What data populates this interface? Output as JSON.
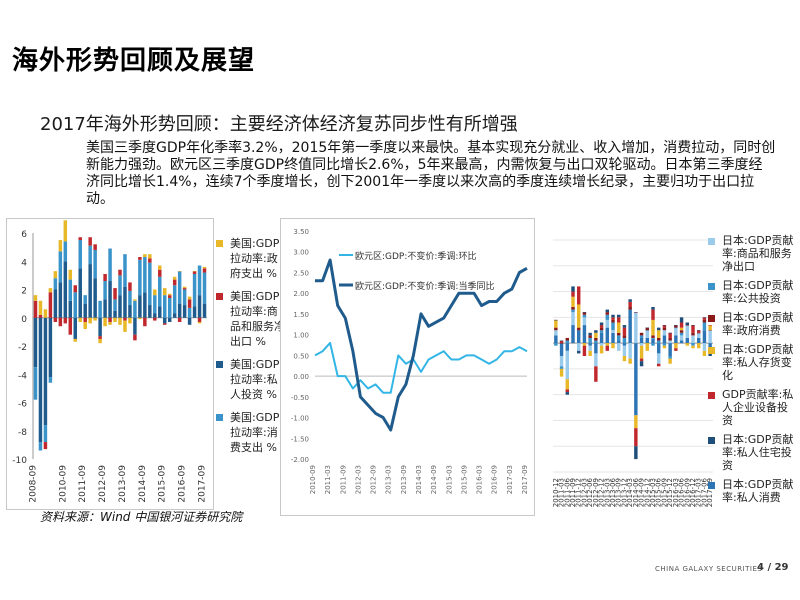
{
  "header": {
    "title": "海外形势回顾及展望"
  },
  "subtitle": "2017年海外形势回顾：主要经济体经济复苏同步性有所增强",
  "paragraph": "美国三季度GDP年化季率3.2%，2015年第一季度以来最快。基本实现充分就业、收入增加，消费拉动，同时创新能力强劲。欧元区三季度GDP终值同比增长2.6%，5年来最高，内需恢复与出口双轮驱动。日本第三季度经济同比增长1.4%，连续7个季度增长，创下2001年一季度以来次高的季度连续增长纪录，主要归功于出口拉动。",
  "source": "资料来源：Wind 中国银河证券研究院",
  "footer": {
    "company": "CHINA GALAXY SECURITIES",
    "page": "4 / 29"
  },
  "colors": {
    "gov": "#E8B829",
    "net_export": "#C0282D",
    "priv_invest": "#1F5B8C",
    "consume": "#3A93C9",
    "dark_line": "#1F5B8C",
    "light_line": "#33B5E5"
  },
  "chart_data": [
    {
      "type": "bar",
      "stacked": true,
      "ylim": [
        -10,
        6
      ],
      "yticks": [
        "6",
        "4",
        "2",
        "0",
        "-2",
        "-4",
        "-6",
        "-8",
        "-10"
      ],
      "ytick_values": [
        6,
        4,
        2,
        0,
        -2,
        -4,
        -6,
        -8,
        -10
      ],
      "xticks": [
        "2008-09",
        "2010-09",
        "2011-09",
        "2012-09",
        "2013-09",
        "2014-09",
        "2015-09",
        "2016-09",
        "2017-09"
      ],
      "xticks_index": [
        0,
        6,
        10,
        14,
        18,
        22,
        26,
        30,
        34
      ],
      "legend": [
        "美国:GDP拉动率:政府支出 %",
        "美国:GDP拉动率:商品和服务净出口 %",
        "美国:GDP拉动率:私人投资 %",
        "美国:GDP拉动率:消费支出 %"
      ],
      "series": [
        {
          "name": "美国:GDP拉动率:政府支出 %",
          "values": [
            0.4,
            1.0,
            0.6,
            0.3,
            0.5,
            0.8,
            1.5,
            0.7,
            -0.2,
            -0.3,
            -0.5,
            -0.4,
            -0.2,
            -0.3,
            -0.6,
            -0.2,
            -0.3,
            -0.5,
            -0.8,
            -0.4,
            0.1,
            -0.1,
            0.2,
            0.3,
            0.4,
            0.3,
            0.5,
            0.1,
            0.2,
            0.0,
            0.1,
            0.2,
            0.0,
            -0.1,
            0.1
          ]
        },
        {
          "name": "美国:GDP拉动率:商品和服务净出口 %",
          "values": [
            1.2,
            0.2,
            -0.5,
            1.8,
            -0.3,
            -0.6,
            -0.4,
            -1.2,
            0.5,
            0.2,
            -0.3,
            0.6,
            0.4,
            -0.2,
            0.5,
            -0.3,
            0.8,
            0.4,
            -0.2,
            0.6,
            -0.4,
            0.2,
            -0.6,
            0.3,
            -0.2,
            0.5,
            -0.1,
            0.2,
            0.4,
            -0.3,
            0.1,
            0.6,
            0.2,
            -0.3,
            0.3
          ]
        },
        {
          "name": "美国:GDP拉动率:私人投资 %",
          "values": [
            -3.5,
            -8.8,
            -7.6,
            -4.2,
            2.0,
            2.5,
            4.0,
            1.2,
            -1.5,
            3.5,
            1.0,
            3.8,
            2.8,
            -1.3,
            1.3,
            2.6,
            0.5,
            1.6,
            2.2,
            0.9,
            -1.2,
            1.6,
            1.8,
            0.9,
            0.3,
            0.8,
            -0.4,
            -0.3,
            0.3,
            1.0,
            0.9,
            -0.5,
            0.8,
            1.6,
            1.0
          ]
        },
        {
          "name": "美国:GDP拉动率:消费支出 %",
          "values": [
            -2.3,
            -0.6,
            -1.2,
            -0.4,
            0.8,
            2.2,
            1.4,
            1.5,
            1.8,
            2.0,
            0.6,
            1.3,
            2.0,
            1.2,
            1.3,
            2.3,
            0.8,
            1.4,
            2.3,
            1.0,
            1.2,
            2.5,
            2.5,
            3.0,
            1.3,
            2.1,
            1.6,
            1.4,
            2.0,
            2.3,
            1.1,
            0.7,
            2.3,
            2.1,
            2.2
          ]
        }
      ]
    },
    {
      "type": "line",
      "ylim": [
        -2.0,
        3.5
      ],
      "yticks": [
        "3.50",
        "3.00",
        "2.50",
        "2.00",
        "1.50",
        "1.00",
        "0.50",
        "0.00",
        "-0.50",
        "-1.00",
        "-1.50",
        "-2.00"
      ],
      "ytick_values": [
        3.5,
        3.0,
        2.5,
        2.0,
        1.5,
        1.0,
        0.5,
        0.0,
        -0.5,
        -1.0,
        -1.5,
        -2.0
      ],
      "xticks": [
        "2010-09",
        "2011-03",
        "2011-09",
        "2012-03",
        "2012-09",
        "2013-03",
        "2013-09",
        "2014-03",
        "2014-09",
        "2015-03",
        "2015-09",
        "2016-03",
        "2016-09",
        "2017-03",
        "2017-09"
      ],
      "x": [
        "2010-09",
        "2010-12",
        "2011-03",
        "2011-06",
        "2011-09",
        "2011-12",
        "2012-03",
        "2012-06",
        "2012-09",
        "2012-12",
        "2013-03",
        "2013-06",
        "2013-09",
        "2013-12",
        "2014-03",
        "2014-06",
        "2014-09",
        "2014-12",
        "2015-03",
        "2015-06",
        "2015-09",
        "2015-12",
        "2016-03",
        "2016-06",
        "2016-09",
        "2016-12",
        "2017-03",
        "2017-06",
        "2017-09"
      ],
      "legend": [
        "欧元区:GDP:不变价:季调:环比",
        "欧元区:GDP:不变价:季调:当季同比"
      ],
      "series": [
        {
          "name": "欧元区:GDP:不变价:季调:环比",
          "values": [
            0.5,
            0.6,
            0.8,
            0.0,
            0.0,
            -0.3,
            -0.1,
            -0.3,
            -0.2,
            -0.4,
            -0.4,
            0.5,
            0.3,
            0.4,
            0.1,
            0.4,
            0.5,
            0.6,
            0.4,
            0.4,
            0.5,
            0.5,
            0.4,
            0.3,
            0.4,
            0.6,
            0.6,
            0.7,
            0.6
          ]
        },
        {
          "name": "欧元区:GDP:不变价:季调:当季同比",
          "values": [
            2.3,
            2.3,
            2.8,
            1.7,
            1.4,
            0.6,
            -0.5,
            -0.7,
            -0.9,
            -1.0,
            -1.3,
            -0.5,
            -0.2,
            0.5,
            1.5,
            1.2,
            1.3,
            1.4,
            1.7,
            2.0,
            2.0,
            2.0,
            1.7,
            1.8,
            1.8,
            2.0,
            2.1,
            2.5,
            2.6
          ]
        }
      ]
    },
    {
      "type": "bar",
      "stacked": true,
      "ylim": [
        -5.0,
        4.0
      ],
      "yticks": [
        "4.00",
        "3.00",
        "2.00",
        "1.00",
        "0.00",
        "-1.00",
        "-2.00",
        "-3.00",
        "-4.00",
        "-5.00"
      ],
      "ytick_values": [
        4,
        3,
        2,
        1,
        0,
        -1,
        -2,
        -3,
        -4,
        -5
      ],
      "xticks": [
        "2010-12",
        "2011-03",
        "2011-06",
        "2011-09",
        "2011-12",
        "2012-03",
        "2012-06",
        "2012-09",
        "2012-12",
        "2013-03",
        "2013-06",
        "2013-09",
        "2013-12",
        "2014-03",
        "2014-06",
        "2014-09",
        "2014-12",
        "2015-03",
        "2015-06",
        "2015-09",
        "2015-12",
        "2016-03",
        "2016-06",
        "2016-09",
        "2016-12",
        "2017-03",
        "2017-06",
        "2017-09"
      ],
      "legend": [
        "日本:GDP贡献率:商品和服务净出口",
        "日本:GDP贡献率:公共投资",
        "日本:GDP贡献率:政府消费",
        "日本:GDP贡献率:私人存货变化",
        "GDP贡献率:私人企业设备投资",
        "日本:GDP贡献率:私人住宅投资",
        "日本:GDP贡献率:私人消费"
      ],
      "series": [
        {
          "name": "日本:GDP贡献率:商品和服务净出口",
          "values": [
            0.2,
            -0.4,
            -1.1,
            0.5,
            -0.3,
            0.3,
            -0.2,
            -0.5,
            -0.1,
            0.3,
            0.1,
            -0.3,
            -0.4,
            -0.6,
            1.2,
            -0.1,
            0.3,
            0.0,
            -0.4,
            0.2,
            0.1,
            0.3,
            0.2,
            0.5,
            0.3,
            0.2,
            -0.3,
            0.5
          ]
        },
        {
          "name": "日本:GDP贡献率:公共投资",
          "values": [
            -0.1,
            -0.1,
            0.1,
            0.1,
            0.0,
            0.1,
            0.2,
            0.1,
            0.1,
            0.2,
            0.3,
            0.2,
            0.2,
            0.0,
            0.0,
            0.1,
            0.0,
            -0.1,
            0.1,
            -0.1,
            -0.1,
            0.0,
            0.1,
            0.0,
            -0.1,
            0.0,
            0.3,
            -0.1
          ]
        },
        {
          "name": "日本:GDP贡献率:政府消费",
          "values": [
            0.1,
            0.0,
            0.1,
            0.1,
            0.1,
            0.1,
            0.1,
            0.1,
            0.1,
            0.1,
            0.1,
            0.1,
            0.1,
            0.1,
            0.0,
            0.1,
            0.1,
            0.1,
            0.1,
            0.1,
            0.1,
            0.1,
            0.1,
            0.0,
            0.1,
            0.0,
            0.1,
            0.0
          ]
        },
        {
          "name": "日本:GDP贡献率:私人存货变化",
          "values": [
            0.3,
            -0.3,
            -0.4,
            0.4,
            0.9,
            -0.1,
            -0.2,
            0.2,
            -0.3,
            -0.1,
            -0.2,
            0.4,
            -0.2,
            -0.2,
            -0.5,
            -0.5,
            -0.3,
            0.6,
            0.3,
            -0.1,
            -0.2,
            -0.2,
            0.1,
            -0.1,
            -0.1,
            -0.2,
            -0.2,
            0.2
          ]
        },
        {
          "name": "GDP贡献率:私人企业设备投资",
          "values": [
            0.0,
            0.1,
            -0.1,
            0.2,
            0.7,
            -0.4,
            0.0,
            -0.6,
            0.1,
            -0.2,
            0.1,
            0.2,
            0.3,
            0.2,
            -0.7,
            -0.1,
            0.0,
            0.4,
            -0.1,
            0.1,
            0.2,
            -0.1,
            0.2,
            0.0,
            0.3,
            0.1,
            0.1,
            0.0
          ]
        },
        {
          "name": "日本:GDP贡献率:私人住宅投资",
          "values": [
            0.0,
            0.0,
            -0.1,
            0.2,
            -0.1,
            0.0,
            0.1,
            0.1,
            0.1,
            0.1,
            0.1,
            0.1,
            0.1,
            0.1,
            -0.5,
            -0.2,
            0.0,
            0.1,
            0.1,
            0.0,
            0.0,
            0.0,
            0.2,
            0.1,
            0.0,
            0.0,
            0.0,
            -0.1
          ]
        },
        {
          "name": "日本:GDP贡献率:私人消费",
          "values": [
            0.3,
            -0.5,
            -0.3,
            0.7,
            0.5,
            0.7,
            -0.1,
            -0.4,
            0.4,
            0.6,
            0.4,
            0.1,
            -0.1,
            1.3,
            -2.8,
            0.2,
            0.2,
            0.2,
            -0.4,
            0.3,
            -0.5,
            0.3,
            0.1,
            0.2,
            0.0,
            0.2,
            0.5,
            -0.3
          ]
        }
      ]
    }
  ]
}
